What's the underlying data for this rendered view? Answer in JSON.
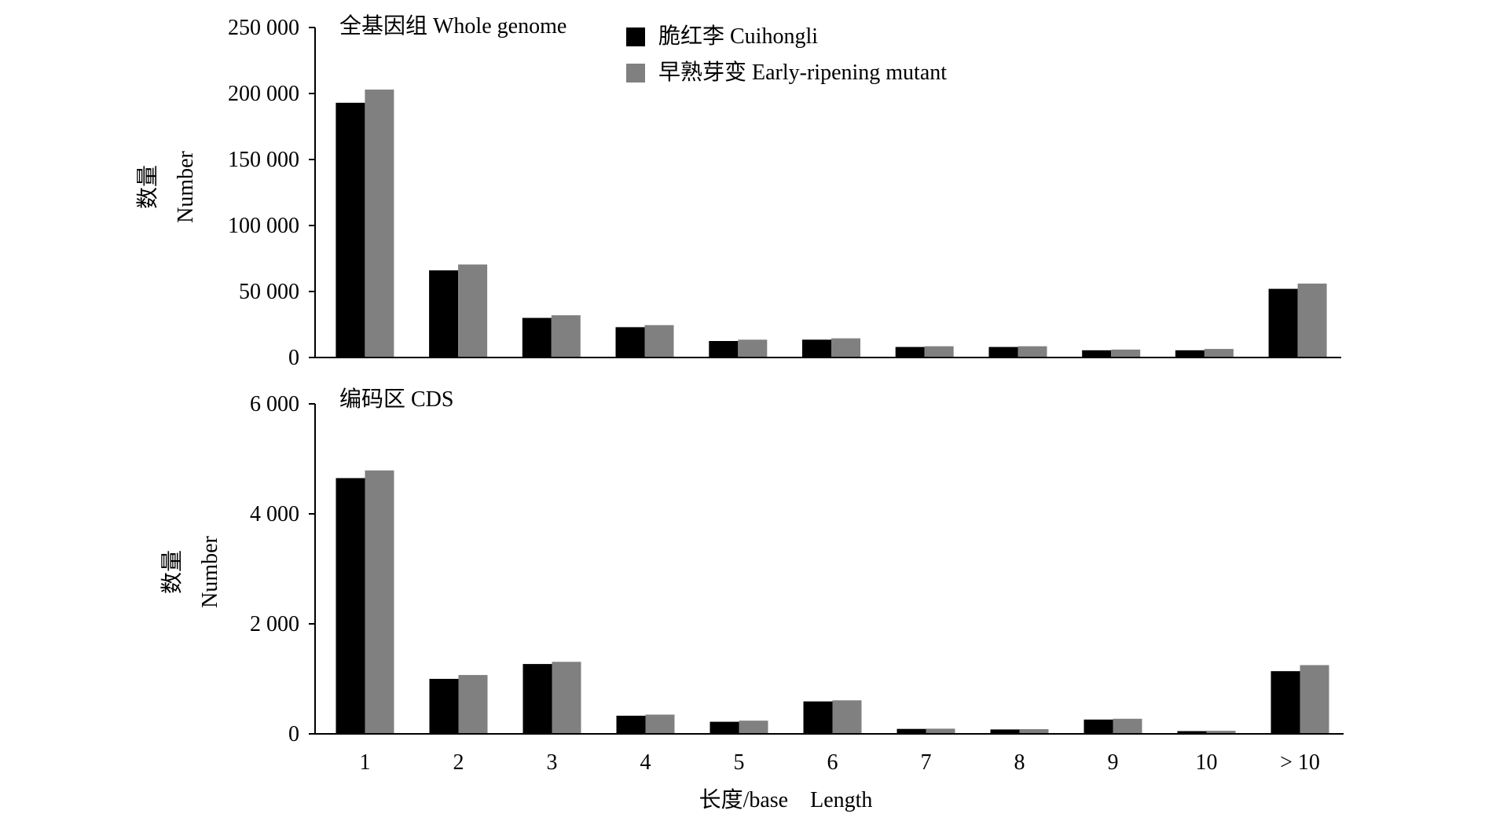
{
  "legend": [
    {
      "label": "脆红李 Cuihongli",
      "color": "#000000"
    },
    {
      "label": "早熟芽变 Early-ripening mutant",
      "color": "#808080"
    }
  ],
  "xlabel": "长度/base    Length",
  "chart_data": [
    {
      "type": "bar",
      "title": "全基因组 Whole genome",
      "ylabel_cn": "数量",
      "ylabel_en": "Number",
      "ylim": [
        0,
        250000
      ],
      "yticks": [
        0,
        50000,
        100000,
        150000,
        200000,
        250000
      ],
      "ytick_labels": [
        "0",
        "50 000",
        "100 000",
        "150 000",
        "200 000",
        "250 000"
      ],
      "categories": [
        "1",
        "2",
        "3",
        "4",
        "5",
        "6",
        "7",
        "8",
        "9",
        "10",
        "> 10"
      ],
      "series": [
        {
          "name": "脆红李 Cuihongli",
          "values": [
            193000,
            66000,
            30000,
            23000,
            12500,
            13500,
            8000,
            8000,
            5500,
            5500,
            52000
          ]
        },
        {
          "name": "早熟芽变 Early-ripening mutant",
          "values": [
            203000,
            70500,
            32000,
            24500,
            13500,
            14500,
            8500,
            8500,
            6000,
            6500,
            56000
          ]
        }
      ]
    },
    {
      "type": "bar",
      "title": "编码区 CDS",
      "ylabel_cn": "数量",
      "ylabel_en": "Number",
      "ylim": [
        0,
        6000
      ],
      "yticks": [
        0,
        2000,
        4000,
        6000
      ],
      "ytick_labels": [
        "0",
        "2 000",
        "4 000",
        "6 000"
      ],
      "categories": [
        "1",
        "2",
        "3",
        "4",
        "5",
        "6",
        "7",
        "8",
        "9",
        "10",
        "> 10"
      ],
      "series": [
        {
          "name": "脆红李 Cuihongli",
          "values": [
            4650,
            1000,
            1270,
            330,
            220,
            590,
            90,
            80,
            260,
            50,
            1140
          ]
        },
        {
          "name": "早熟芽变 Early-ripening mutant",
          "values": [
            4790,
            1070,
            1310,
            350,
            240,
            610,
            95,
            85,
            275,
            55,
            1250
          ]
        }
      ],
      "show_xtick_labels": true
    }
  ]
}
